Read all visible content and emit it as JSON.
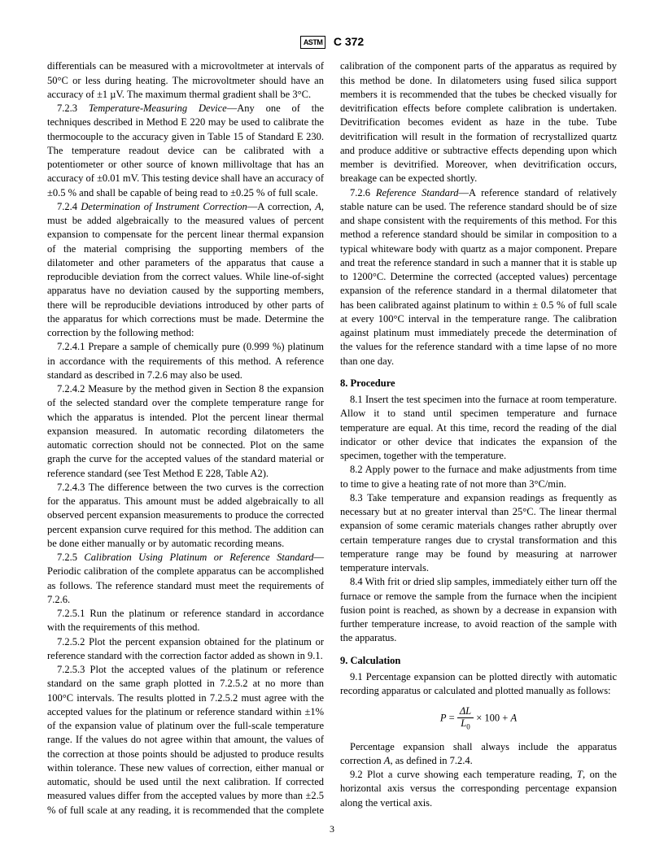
{
  "header": {
    "logo_text": "ASTM",
    "doc_number": "C 372"
  },
  "paragraphs": {
    "p0": "differentials can be measured with a microvoltmeter at intervals of 50°C or less during heating. The microvoltmeter should have an accuracy of ±1 µV. The maximum thermal gradient shall be 3°C.",
    "p1_num": "7.2.3 ",
    "p1_title": "Temperature-Measuring Device",
    "p1_body": "—Any one of the techniques described in Method E 220 may be used to calibrate the thermocouple to the accuracy given in Table 15 of Standard E 230. The temperature readout device can be calibrated with a potentiometer or other source of known millivoltage that has an accuracy of ±0.01 mV. This testing device shall have an accuracy of ±0.5 % and shall be capable of being read to ±0.25 % of full scale.",
    "p2_num": "7.2.4 ",
    "p2_title": "Determination of Instrument Correction",
    "p2_body1": "—A correction, ",
    "p2_A": "A",
    "p2_body2": ", must be added algebraically to the measured values of percent expansion to compensate for the percent linear thermal expansion of the material comprising the supporting members of the dilatometer and other parameters of the apparatus that cause a reproducible deviation from the correct values. While line-of-sight apparatus have no deviation caused by the supporting members, there will be reproducible deviations introduced by other parts of the apparatus for which corrections must be made. Determine the correction by the following method:",
    "p3": "7.2.4.1 Prepare a sample of chemically pure (0.999 %) platinum in accordance with the requirements of this method. A reference standard as described in 7.2.6 may also be used.",
    "p4": "7.2.4.2 Measure by the method given in Section 8 the expansion of the selected standard over the complete temperature range for which the apparatus is intended. Plot the percent linear thermal expansion measured. In automatic recording dilatometers the automatic correction should not be connected. Plot on the same graph the curve for the accepted values of the standard material or reference standard (see Test Method E 228, Table A2).",
    "p5": "7.2.4.3 The difference between the two curves is the correction for the apparatus. This amount must be added algebraically to all observed percent expansion measurements to produce the corrected percent expansion curve required for this method. The addition can be done either manually or by automatic recording means.",
    "p6_num": "7.2.5 ",
    "p6_title": "Calibration Using Platinum or Reference Standard",
    "p6_body": "—Periodic calibration of the complete apparatus can be accomplished as follows. The reference standard must meet the requirements of 7.2.6.",
    "p7": "7.2.5.1 Run the platinum or reference standard in accordance with the requirements of this method.",
    "p8": "7.2.5.2 Plot the percent expansion obtained for the platinum or reference standard with the correction factor added as shown in 9.1.",
    "p9": "7.2.5.3 Plot the accepted values of the platinum or reference standard on the same graph plotted in 7.2.5.2 at no more than 100°C intervals. The results plotted in 7.2.5.2 must agree with the accepted values for the platinum or reference standard within ±1% of the expansion value of platinum over the full-scale temperature range. If the values do not agree within that amount, the values of the correction at those points should be adjusted to produce results within tolerance. These new values of correction, either manual or automatic, should be used until the next calibration. If corrected measured values differ from the accepted values by more than ±2.5 % of full scale at any reading, it is recommended that the complete calibration of the component parts of the apparatus as required by this method be done. In dilatometers using fused silica support members it is recommended that the tubes be checked visually for devitrification effects before complete calibration is undertaken. Devitrification becomes evident as haze in the tube. Tube devitrification will result in the formation of recrystallized quartz and produce additive or subtractive effects depending upon which member is devitrified. Moreover, when devitrification occurs, breakage can be expected shortly.",
    "p10_num": "7.2.6 ",
    "p10_title": "Reference Standard",
    "p10_body": "—A reference standard of relatively stable nature can be used. The reference standard should be of size and shape consistent with the requirements of this method. For this method a reference standard should be similar in composition to a typical whiteware body with quartz as a major component. Prepare and treat the reference standard in such a manner that it is stable up to 1200°C. Determine the corrected (accepted values) percentage expansion of the reference standard in a thermal dilatometer that has been calibrated against platinum to within ± 0.5 % of full scale at every 100°C interval in the temperature range. The calibration against platinum must immediately precede the determination of the values for the reference standard with a time lapse of no more than one day.",
    "sec8": "8. Procedure",
    "p11": "8.1 Insert the test specimen into the furnace at room temperature. Allow it to stand until specimen temperature and furnace temperature are equal. At this time, record the reading of the dial indicator or other device that indicates the expansion of the specimen, together with the temperature.",
    "p12": "8.2 Apply power to the furnace and make adjustments from time to time to give a heating rate of not more than 3°C/min.",
    "p13": "8.3 Take temperature and expansion readings as frequently as necessary but at no greater interval than 25°C. The linear thermal expansion of some ceramic materials changes rather abruptly over certain temperature ranges due to crystal transformation and this temperature range may be found by measuring at narrower temperature intervals.",
    "p14": "8.4 With frit or dried slip samples, immediately either turn off the furnace or remove the sample from the furnace when the incipient fusion point is reached, as shown by a decrease in expansion with further temperature increase, to avoid reaction of the sample with the apparatus.",
    "sec9": "9. Calculation",
    "p15": "9.1 Percentage expansion can be plotted directly with automatic recording apparatus or calculated and plotted manually as follows:",
    "eq_P": "P",
    "eq_eq": " = ",
    "eq_num": "ΔL",
    "eq_den": "L",
    "eq_den_sub": "0",
    "eq_tail": " × 100 + ",
    "eq_A": "A",
    "p16a": "Percentage expansion shall always include the apparatus correction ",
    "p16b": "A",
    "p16c": ", as defined in 7.2.4.",
    "p17a": "9.2 Plot a curve showing each temperature reading, ",
    "p17b": "T",
    "p17c": ", on the horizontal axis versus the corresponding percentage expansion along the vertical axis."
  },
  "page_number": "3"
}
